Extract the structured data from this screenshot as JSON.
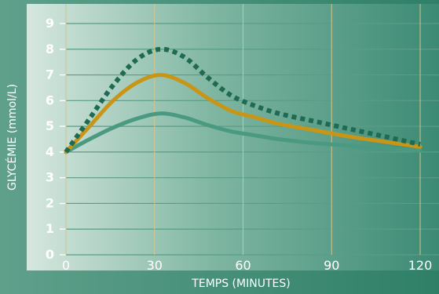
{
  "chart_data": {
    "type": "line",
    "xlabel": "TEMPS (MINUTES)",
    "ylabel": "GLYCÉMIE (mmol/L)",
    "xlim": [
      0,
      120
    ],
    "ylim": [
      0,
      9
    ],
    "x_ticks": [
      0,
      30,
      60,
      90,
      120
    ],
    "y_ticks": [
      0,
      1,
      2,
      3,
      4,
      5,
      6,
      7,
      8,
      9
    ],
    "grid": true,
    "series": [
      {
        "color": "#1f6a52",
        "style": "dotted",
        "points": [
          [
            0,
            4.0
          ],
          [
            8,
            5.3
          ],
          [
            16,
            6.6
          ],
          [
            24,
            7.6
          ],
          [
            32,
            8.0
          ],
          [
            40,
            7.7
          ],
          [
            48,
            6.9
          ],
          [
            56,
            6.2
          ],
          [
            64,
            5.8
          ],
          [
            72,
            5.5
          ],
          [
            84,
            5.2
          ],
          [
            96,
            4.9
          ],
          [
            108,
            4.6
          ],
          [
            120,
            4.3
          ]
        ]
      },
      {
        "color": "#c99516",
        "style": "solid",
        "points": [
          [
            0,
            4.0
          ],
          [
            8,
            5.0
          ],
          [
            16,
            6.0
          ],
          [
            24,
            6.7
          ],
          [
            32,
            7.0
          ],
          [
            40,
            6.7
          ],
          [
            48,
            6.1
          ],
          [
            56,
            5.6
          ],
          [
            64,
            5.35
          ],
          [
            72,
            5.1
          ],
          [
            84,
            4.85
          ],
          [
            96,
            4.6
          ],
          [
            108,
            4.4
          ],
          [
            120,
            4.2
          ]
        ]
      },
      {
        "color": "#4a9a82",
        "style": "solid",
        "points": [
          [
            0,
            4.0
          ],
          [
            8,
            4.5
          ],
          [
            16,
            4.95
          ],
          [
            24,
            5.3
          ],
          [
            32,
            5.5
          ],
          [
            40,
            5.35
          ],
          [
            48,
            5.05
          ],
          [
            56,
            4.8
          ],
          [
            64,
            4.65
          ],
          [
            72,
            4.5
          ],
          [
            84,
            4.35
          ],
          [
            96,
            4.25
          ],
          [
            108,
            4.15
          ],
          [
            120,
            4.05
          ]
        ]
      }
    ]
  }
}
